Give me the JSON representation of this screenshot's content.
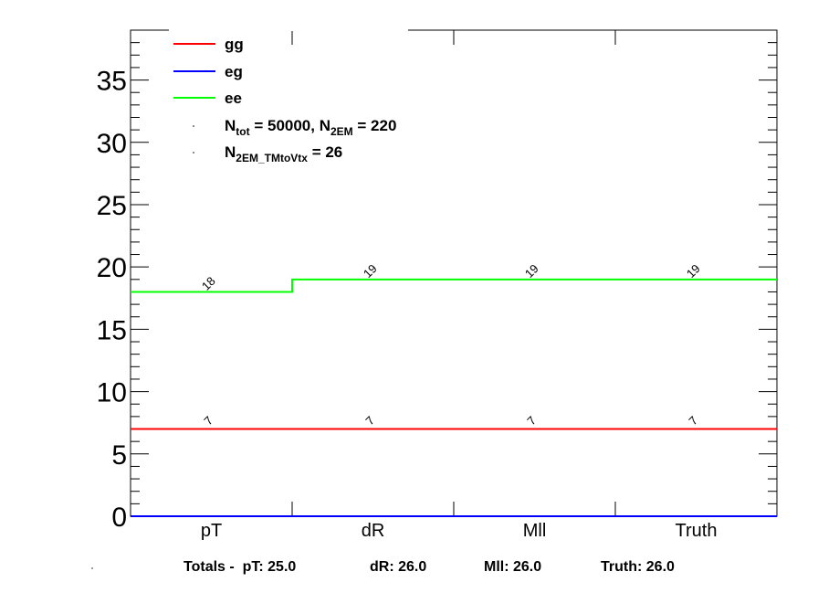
{
  "chart_data": {
    "type": "line",
    "categories": [
      "pT",
      "dR",
      "Mll",
      "Truth"
    ],
    "ylim": [
      0,
      39
    ],
    "yticks": [
      0,
      5,
      10,
      15,
      20,
      25,
      30,
      35
    ],
    "grid": false,
    "legend_position": "top-left",
    "series": [
      {
        "name": "gg",
        "color": "#ff0000",
        "values": [
          7,
          7,
          7,
          7
        ],
        "labels": [
          "7",
          "7",
          "7",
          "7"
        ]
      },
      {
        "name": "eg",
        "color": "#0000ff",
        "values": [
          0,
          0,
          0,
          0
        ],
        "labels": []
      },
      {
        "name": "ee",
        "color": "#00ff00",
        "values": [
          18,
          19,
          19,
          19
        ],
        "labels": [
          "18",
          "19",
          "19",
          "19"
        ]
      }
    ],
    "legend_text": {
      "ntot_prefix": "N",
      "ntot_sub": "tot",
      "ntot_mid": " = 50000, N",
      "n2em_sub": "2EM",
      "n2em_value": " = 220",
      "n2em_tm_prefix": "N",
      "n2em_tm_sub": "2EM_TMtoVtx",
      "n2em_tm_value": "  = 26"
    },
    "totals": {
      "prefix": "Totals -  pT: 25.0",
      "dR": "dR: 26.0",
      "Mll": "Mll: 26.0",
      "Truth": "Truth: 26.0"
    }
  }
}
